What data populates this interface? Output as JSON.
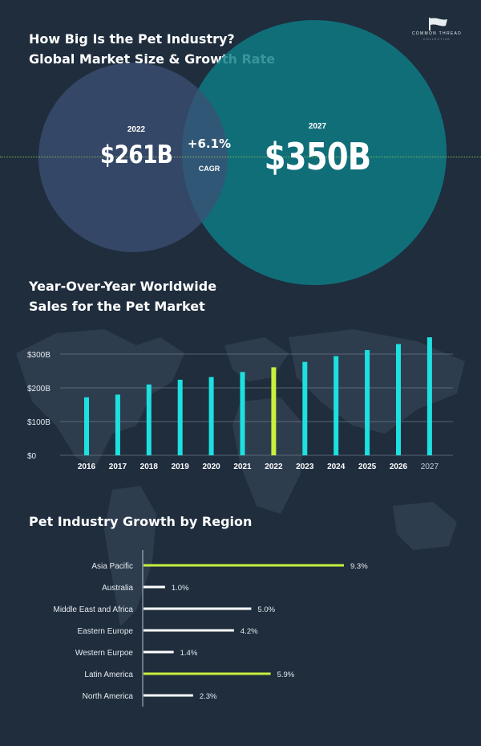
{
  "header": {
    "title_line1": "How Big Is the Pet Industry?",
    "title_line2": "Global Market Size & Growth Rate",
    "logo_line1": "COMMON THREAD",
    "logo_line2": "COLLECTIVE"
  },
  "market_size": {
    "year_start": "2022",
    "value_start": "$261B",
    "growth": "+6.1%",
    "growth_label": "CAGR",
    "year_end": "2027",
    "value_end": "$350B"
  },
  "yoy": {
    "title_line1": "Year-Over-Year Worldwide",
    "title_line2": "Sales for the Pet Market"
  },
  "regions": {
    "title": "Pet Industry Growth by Region"
  },
  "colors": {
    "background": "#1f2d3d",
    "bar": "#1de0e0",
    "highlight": "#c8f03c",
    "region_default": "#ffffff"
  },
  "chart_data": [
    {
      "type": "bar",
      "categories": [
        "2016",
        "2017",
        "2018",
        "2019",
        "2020",
        "2021",
        "2022",
        "2023",
        "2024",
        "2025",
        "2026",
        "2027"
      ],
      "values": [
        172,
        180,
        210,
        224,
        232,
        247,
        261,
        277,
        294,
        312,
        330,
        350
      ],
      "highlight_index": 6,
      "yticks": [
        0,
        100,
        200,
        300
      ],
      "ytick_labels": [
        "$0",
        "$100B",
        "$200B",
        "$300B"
      ],
      "ylim": [
        0,
        350
      ],
      "grid": true
    },
    {
      "type": "bar",
      "orientation": "horizontal",
      "categories": [
        "Asia Pacific",
        "Australia",
        "Middle East and Africa",
        "Eastern Europe",
        "Western Eurpoe",
        "Latin America",
        "North America"
      ],
      "values": [
        9.3,
        1.0,
        5.0,
        4.2,
        1.4,
        5.9,
        2.3
      ],
      "value_labels": [
        "9.3%",
        "1.0%",
        "5.0%",
        "4.2%",
        "1.4%",
        "5.9%",
        "2.3%"
      ],
      "highlighted": [
        true,
        false,
        false,
        false,
        false,
        true,
        false
      ],
      "xlim": [
        0,
        9.3
      ]
    }
  ]
}
